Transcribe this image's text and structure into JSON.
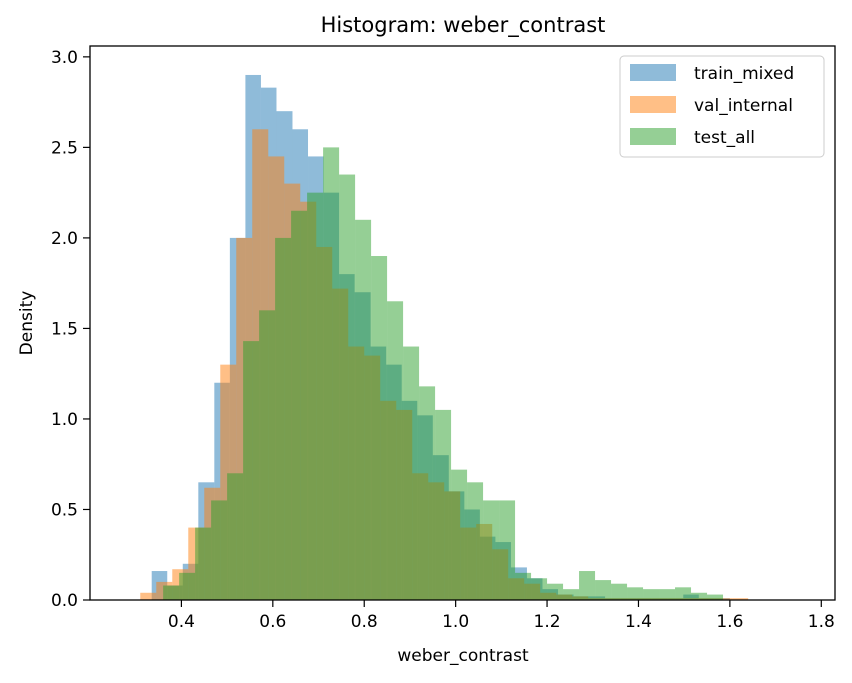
{
  "chart_data": {
    "type": "histogram",
    "title": "Histogram: weber_contrast",
    "xlabel": "weber_contrast",
    "ylabel": "Density",
    "xlim": [
      0.2,
      1.83
    ],
    "ylim": [
      0,
      3.06
    ],
    "xticks": [
      0.4,
      0.6,
      0.8,
      1.0,
      1.2,
      1.4,
      1.6,
      1.8
    ],
    "yticks": [
      0.0,
      0.5,
      1.0,
      1.5,
      2.0,
      2.5,
      3.0
    ],
    "xtick_labels": [
      "0.4",
      "0.6",
      "0.8",
      "1.0",
      "1.2",
      "1.4",
      "1.6",
      "1.8"
    ],
    "ytick_labels": [
      "0.0",
      "0.5",
      "1.0",
      "1.5",
      "2.0",
      "2.5",
      "3.0"
    ],
    "grid": false,
    "legend_position": "top-right",
    "series": [
      {
        "name": "train_mixed",
        "color": "#1f77b4",
        "opacity": 0.5,
        "bins": [
          [
            0.335,
            0.369,
            0.16
          ],
          [
            0.369,
            0.403,
            0.08
          ],
          [
            0.403,
            0.437,
            0.2
          ],
          [
            0.437,
            0.472,
            0.65
          ],
          [
            0.472,
            0.506,
            1.2
          ],
          [
            0.506,
            0.54,
            2.0
          ],
          [
            0.54,
            0.574,
            2.9
          ],
          [
            0.574,
            0.608,
            2.83
          ],
          [
            0.608,
            0.643,
            2.7
          ],
          [
            0.643,
            0.677,
            2.6
          ],
          [
            0.677,
            0.711,
            2.45
          ],
          [
            0.711,
            0.745,
            2.25
          ],
          [
            0.745,
            0.779,
            1.8
          ],
          [
            0.779,
            0.814,
            1.7
          ],
          [
            0.814,
            0.848,
            1.4
          ],
          [
            0.848,
            0.882,
            1.3
          ],
          [
            0.882,
            0.916,
            1.1
          ],
          [
            0.916,
            0.95,
            1.02
          ],
          [
            0.95,
            0.985,
            0.8
          ],
          [
            0.985,
            1.019,
            0.6
          ],
          [
            1.019,
            1.053,
            0.5
          ],
          [
            1.053,
            1.087,
            0.35
          ],
          [
            1.087,
            1.121,
            0.32
          ],
          [
            1.121,
            1.156,
            0.18
          ],
          [
            1.156,
            1.19,
            0.12
          ],
          [
            1.19,
            1.224,
            0.06
          ],
          [
            1.224,
            1.258,
            0.03
          ],
          [
            1.258,
            1.292,
            0.02
          ],
          [
            1.292,
            1.327,
            0.02
          ],
          [
            1.327,
            1.361,
            0.01
          ],
          [
            1.361,
            1.395,
            0.01
          ],
          [
            1.395,
            1.429,
            0.01
          ],
          [
            1.429,
            1.463,
            0.01
          ],
          [
            1.463,
            1.498,
            0.01
          ],
          [
            1.498,
            1.532,
            0.03
          ],
          [
            1.532,
            1.566,
            0.01
          ],
          [
            1.566,
            1.6,
            0.01
          ]
        ]
      },
      {
        "name": "val_internal",
        "color": "#ff7f0e",
        "opacity": 0.5,
        "bins": [
          [
            0.31,
            0.345,
            0.04
          ],
          [
            0.345,
            0.38,
            0.1
          ],
          [
            0.38,
            0.415,
            0.17
          ],
          [
            0.415,
            0.45,
            0.4
          ],
          [
            0.45,
            0.485,
            0.62
          ],
          [
            0.485,
            0.52,
            1.3
          ],
          [
            0.52,
            0.555,
            2.0
          ],
          [
            0.555,
            0.59,
            2.6
          ],
          [
            0.59,
            0.625,
            2.45
          ],
          [
            0.625,
            0.66,
            2.3
          ],
          [
            0.66,
            0.695,
            2.2
          ],
          [
            0.695,
            0.73,
            1.95
          ],
          [
            0.73,
            0.765,
            1.72
          ],
          [
            0.765,
            0.8,
            1.4
          ],
          [
            0.8,
            0.835,
            1.35
          ],
          [
            0.835,
            0.87,
            1.1
          ],
          [
            0.87,
            0.905,
            1.05
          ],
          [
            0.905,
            0.94,
            0.7
          ],
          [
            0.94,
            0.975,
            0.65
          ],
          [
            0.975,
            1.01,
            0.6
          ],
          [
            1.01,
            1.045,
            0.4
          ],
          [
            1.045,
            1.08,
            0.42
          ],
          [
            1.08,
            1.115,
            0.28
          ],
          [
            1.115,
            1.15,
            0.12
          ],
          [
            1.15,
            1.185,
            0.09
          ],
          [
            1.185,
            1.22,
            0.04
          ],
          [
            1.22,
            1.255,
            0.03
          ],
          [
            1.255,
            1.29,
            0.02
          ],
          [
            1.29,
            1.325,
            0.01
          ],
          [
            1.325,
            1.36,
            0.01
          ],
          [
            1.36,
            1.395,
            0.01
          ],
          [
            1.395,
            1.43,
            0.01
          ],
          [
            1.43,
            1.465,
            0.01
          ],
          [
            1.465,
            1.5,
            0.01
          ],
          [
            1.5,
            1.535,
            0.01
          ],
          [
            1.535,
            1.57,
            0.01
          ],
          [
            1.57,
            1.605,
            0.01
          ],
          [
            1.605,
            1.64,
            0.01
          ]
        ]
      },
      {
        "name": "test_all",
        "color": "#2ca02c",
        "opacity": 0.5,
        "bins": [
          [
            0.36,
            0.395,
            0.08
          ],
          [
            0.395,
            0.43,
            0.15
          ],
          [
            0.43,
            0.465,
            0.4
          ],
          [
            0.465,
            0.5,
            0.55
          ],
          [
            0.5,
            0.535,
            0.7
          ],
          [
            0.535,
            0.57,
            1.43
          ],
          [
            0.57,
            0.605,
            1.6
          ],
          [
            0.605,
            0.64,
            2.0
          ],
          [
            0.64,
            0.675,
            2.15
          ],
          [
            0.675,
            0.71,
            2.25
          ],
          [
            0.71,
            0.745,
            2.5
          ],
          [
            0.745,
            0.78,
            2.35
          ],
          [
            0.78,
            0.815,
            2.1
          ],
          [
            0.815,
            0.85,
            1.9
          ],
          [
            0.85,
            0.885,
            1.65
          ],
          [
            0.885,
            0.92,
            1.4
          ],
          [
            0.92,
            0.955,
            1.18
          ],
          [
            0.955,
            0.99,
            1.05
          ],
          [
            0.99,
            1.025,
            0.72
          ],
          [
            1.025,
            1.06,
            0.65
          ],
          [
            1.06,
            1.095,
            0.55
          ],
          [
            1.095,
            1.13,
            0.55
          ],
          [
            1.13,
            1.165,
            0.15
          ],
          [
            1.165,
            1.2,
            0.12
          ],
          [
            1.2,
            1.235,
            0.09
          ],
          [
            1.235,
            1.27,
            0.06
          ],
          [
            1.27,
            1.305,
            0.16
          ],
          [
            1.305,
            1.34,
            0.11
          ],
          [
            1.34,
            1.375,
            0.09
          ],
          [
            1.375,
            1.41,
            0.07
          ],
          [
            1.41,
            1.445,
            0.06
          ],
          [
            1.445,
            1.48,
            0.06
          ],
          [
            1.48,
            1.515,
            0.07
          ],
          [
            1.515,
            1.55,
            0.04
          ],
          [
            1.55,
            1.585,
            0.03
          ]
        ]
      }
    ]
  }
}
